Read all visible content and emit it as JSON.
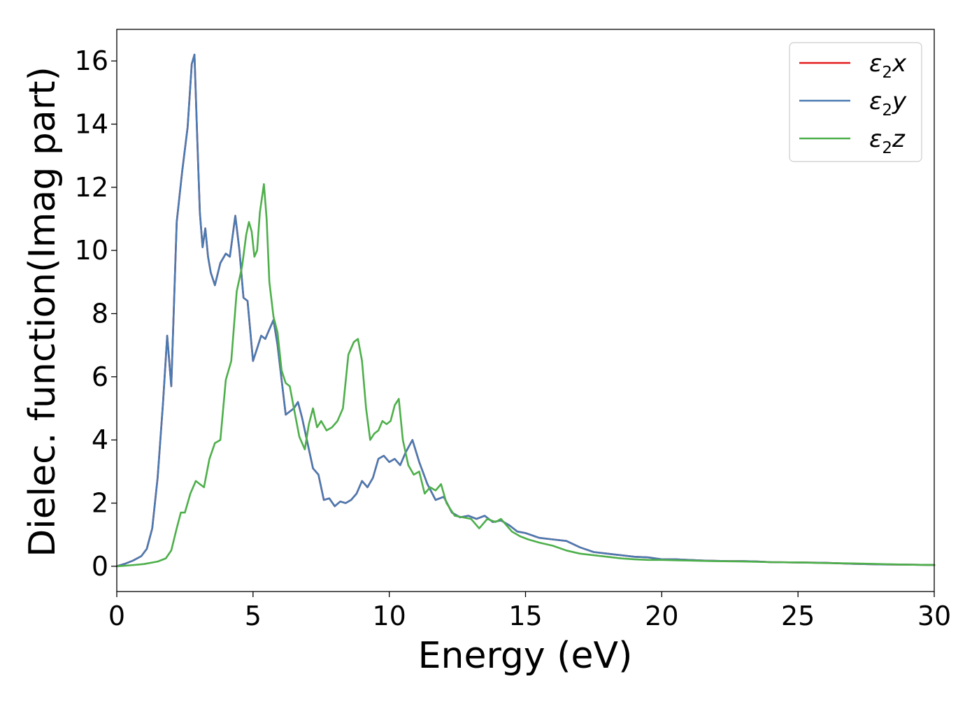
{
  "chart_data": {
    "type": "line",
    "xlabel": "Energy (eV)",
    "ylabel": "Dielec. function(Imag part)",
    "xlim": [
      0,
      30
    ],
    "ylim": [
      -0.8,
      17
    ],
    "xticks": [
      "0",
      "5",
      "10",
      "15",
      "20",
      "25",
      "30"
    ],
    "yticks": [
      "0",
      "2",
      "4",
      "6",
      "8",
      "10",
      "12",
      "14",
      "16"
    ],
    "grid": false,
    "legend_position": "top-right",
    "series": [
      {
        "name": "ε2x",
        "legend_base": "ε",
        "legend_sub": "2",
        "legend_suffix": "x",
        "color": "#e41a1c",
        "x": [
          0,
          0.3,
          0.6,
          0.9,
          1.1,
          1.3,
          1.5,
          1.7,
          1.85,
          2.0,
          2.2,
          2.4,
          2.6,
          2.75,
          2.85,
          2.95,
          3.05,
          3.15,
          3.25,
          3.35,
          3.45,
          3.6,
          3.8,
          4.0,
          4.15,
          4.35,
          4.5,
          4.65,
          4.8,
          5.0,
          5.15,
          5.3,
          5.45,
          5.6,
          5.75,
          5.9,
          6.05,
          6.2,
          6.35,
          6.5,
          6.65,
          6.8,
          7.0,
          7.2,
          7.4,
          7.6,
          7.8,
          8.0,
          8.2,
          8.4,
          8.6,
          8.8,
          9.0,
          9.2,
          9.4,
          9.6,
          9.8,
          10.0,
          10.2,
          10.4,
          10.6,
          10.85,
          11.1,
          11.4,
          11.7,
          12.0,
          12.3,
          12.6,
          12.9,
          13.2,
          13.5,
          13.8,
          14.1,
          14.4,
          14.7,
          15.0,
          15.5,
          16.0,
          16.5,
          17.0,
          17.5,
          18.0,
          18.5,
          19.0,
          19.5,
          20.0,
          20.5,
          21.0,
          21.5,
          22.0,
          22.5,
          23.0,
          23.5,
          24.0,
          25.0,
          26.0,
          27.0,
          28.0,
          29.0,
          30.0
        ],
        "y": [
          0,
          0.08,
          0.18,
          0.32,
          0.55,
          1.2,
          2.8,
          5.2,
          7.3,
          5.7,
          10.9,
          12.5,
          13.9,
          15.9,
          16.2,
          13.6,
          11.2,
          10.1,
          10.7,
          9.8,
          9.3,
          8.9,
          9.6,
          9.9,
          9.8,
          11.1,
          10.0,
          8.5,
          8.4,
          6.5,
          6.9,
          7.3,
          7.2,
          7.5,
          7.8,
          7.0,
          5.9,
          4.8,
          4.9,
          5.0,
          5.2,
          4.7,
          3.9,
          3.1,
          2.9,
          2.1,
          2.15,
          1.9,
          2.05,
          2.0,
          2.1,
          2.3,
          2.7,
          2.5,
          2.8,
          3.4,
          3.5,
          3.3,
          3.4,
          3.2,
          3.6,
          4.0,
          3.3,
          2.6,
          2.1,
          2.2,
          1.7,
          1.55,
          1.6,
          1.5,
          1.6,
          1.4,
          1.45,
          1.3,
          1.1,
          1.05,
          0.9,
          0.85,
          0.8,
          0.6,
          0.45,
          0.4,
          0.35,
          0.3,
          0.28,
          0.22,
          0.22,
          0.2,
          0.18,
          0.17,
          0.16,
          0.16,
          0.15,
          0.13,
          0.12,
          0.11,
          0.08,
          0.06,
          0.05,
          0.04
        ]
      },
      {
        "name": "ε2y",
        "legend_base": "ε",
        "legend_sub": "2",
        "legend_suffix": "y",
        "color": "#4a7ab1",
        "x": [
          0,
          0.3,
          0.6,
          0.9,
          1.1,
          1.3,
          1.5,
          1.7,
          1.85,
          2.0,
          2.2,
          2.4,
          2.6,
          2.75,
          2.85,
          2.95,
          3.05,
          3.15,
          3.25,
          3.35,
          3.45,
          3.6,
          3.8,
          4.0,
          4.15,
          4.35,
          4.5,
          4.65,
          4.8,
          5.0,
          5.15,
          5.3,
          5.45,
          5.6,
          5.75,
          5.9,
          6.05,
          6.2,
          6.35,
          6.5,
          6.65,
          6.8,
          7.0,
          7.2,
          7.4,
          7.6,
          7.8,
          8.0,
          8.2,
          8.4,
          8.6,
          8.8,
          9.0,
          9.2,
          9.4,
          9.6,
          9.8,
          10.0,
          10.2,
          10.4,
          10.6,
          10.85,
          11.1,
          11.4,
          11.7,
          12.0,
          12.3,
          12.6,
          12.9,
          13.2,
          13.5,
          13.8,
          14.1,
          14.4,
          14.7,
          15.0,
          15.5,
          16.0,
          16.5,
          17.0,
          17.5,
          18.0,
          18.5,
          19.0,
          19.5,
          20.0,
          20.5,
          21.0,
          21.5,
          22.0,
          22.5,
          23.0,
          23.5,
          24.0,
          25.0,
          26.0,
          27.0,
          28.0,
          29.0,
          30.0
        ],
        "y": [
          0,
          0.08,
          0.18,
          0.32,
          0.55,
          1.2,
          2.8,
          5.2,
          7.3,
          5.7,
          10.9,
          12.5,
          13.9,
          15.9,
          16.2,
          13.6,
          11.2,
          10.1,
          10.7,
          9.8,
          9.3,
          8.9,
          9.6,
          9.9,
          9.8,
          11.1,
          10.0,
          8.5,
          8.4,
          6.5,
          6.9,
          7.3,
          7.2,
          7.5,
          7.8,
          7.0,
          5.9,
          4.8,
          4.9,
          5.0,
          5.2,
          4.7,
          3.9,
          3.1,
          2.9,
          2.1,
          2.15,
          1.9,
          2.05,
          2.0,
          2.1,
          2.3,
          2.7,
          2.5,
          2.8,
          3.4,
          3.5,
          3.3,
          3.4,
          3.2,
          3.6,
          4.0,
          3.3,
          2.6,
          2.1,
          2.2,
          1.7,
          1.55,
          1.6,
          1.5,
          1.6,
          1.4,
          1.45,
          1.3,
          1.1,
          1.05,
          0.9,
          0.85,
          0.8,
          0.6,
          0.45,
          0.4,
          0.35,
          0.3,
          0.28,
          0.22,
          0.22,
          0.2,
          0.18,
          0.17,
          0.16,
          0.16,
          0.15,
          0.13,
          0.12,
          0.11,
          0.08,
          0.06,
          0.05,
          0.04
        ]
      },
      {
        "name": "ε2z",
        "legend_base": "ε",
        "legend_sub": "2",
        "legend_suffix": "z",
        "color": "#4daf4a",
        "x": [
          0,
          0.5,
          1.0,
          1.5,
          1.8,
          2.0,
          2.2,
          2.35,
          2.5,
          2.7,
          2.9,
          3.05,
          3.2,
          3.4,
          3.6,
          3.8,
          4.0,
          4.2,
          4.4,
          4.6,
          4.75,
          4.85,
          4.95,
          5.05,
          5.15,
          5.25,
          5.4,
          5.5,
          5.6,
          5.75,
          5.9,
          6.05,
          6.2,
          6.35,
          6.5,
          6.7,
          6.9,
          7.05,
          7.2,
          7.35,
          7.5,
          7.7,
          7.9,
          8.1,
          8.3,
          8.5,
          8.7,
          8.85,
          9.0,
          9.15,
          9.3,
          9.45,
          9.6,
          9.75,
          9.9,
          10.05,
          10.2,
          10.35,
          10.5,
          10.7,
          10.9,
          11.1,
          11.3,
          11.5,
          11.7,
          11.9,
          12.1,
          12.4,
          12.7,
          13.0,
          13.3,
          13.6,
          13.9,
          14.1,
          14.3,
          14.5,
          14.8,
          15.1,
          15.5,
          16.0,
          16.5,
          17.0,
          17.5,
          18.0,
          18.5,
          19.0,
          19.5,
          20.0,
          20.5,
          21.0,
          21.5,
          22.0,
          23.0,
          24.0,
          25.0,
          26.0,
          27.0,
          28.0,
          29.0,
          30.0
        ],
        "y": [
          0,
          0.03,
          0.07,
          0.15,
          0.25,
          0.5,
          1.2,
          1.7,
          1.7,
          2.3,
          2.7,
          2.6,
          2.5,
          3.4,
          3.9,
          4.0,
          5.9,
          6.5,
          8.7,
          9.5,
          10.5,
          10.9,
          10.6,
          9.8,
          10.0,
          11.2,
          12.1,
          11.0,
          9.0,
          7.9,
          7.4,
          6.2,
          5.8,
          5.7,
          5.0,
          4.1,
          3.7,
          4.5,
          5.0,
          4.4,
          4.6,
          4.3,
          4.4,
          4.6,
          5.0,
          6.7,
          7.1,
          7.2,
          6.5,
          5.0,
          4.0,
          4.2,
          4.3,
          4.6,
          4.5,
          4.6,
          5.1,
          5.3,
          4.0,
          3.2,
          2.9,
          3.0,
          2.3,
          2.5,
          2.4,
          2.6,
          2.0,
          1.6,
          1.55,
          1.5,
          1.2,
          1.5,
          1.4,
          1.5,
          1.3,
          1.1,
          0.95,
          0.85,
          0.75,
          0.65,
          0.5,
          0.4,
          0.35,
          0.3,
          0.25,
          0.22,
          0.2,
          0.2,
          0.19,
          0.18,
          0.17,
          0.16,
          0.15,
          0.13,
          0.12,
          0.1,
          0.09,
          0.07,
          0.05,
          0.04
        ]
      }
    ]
  }
}
